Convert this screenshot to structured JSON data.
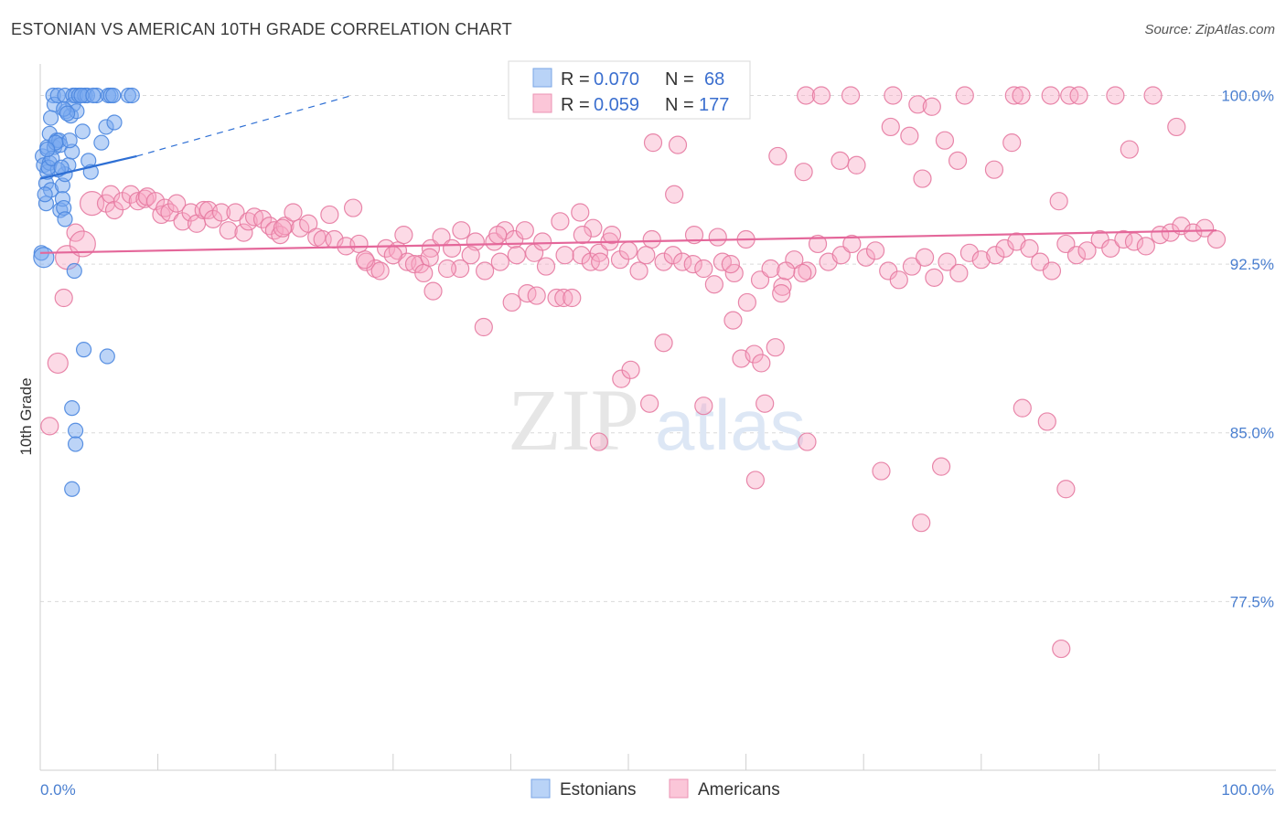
{
  "title": "ESTONIAN VS AMERICAN 10TH GRADE CORRELATION CHART",
  "source": "Source: ZipAtlas.com",
  "watermark": {
    "zip": "ZIP",
    "atlas": "atlas"
  },
  "chart_data": {
    "type": "scatter",
    "ylabel": "10th Grade",
    "xlim": [
      0,
      100
    ],
    "ylim": [
      70.0,
      101.4
    ],
    "x_tick_labels": [
      "0.0%",
      "100.0%"
    ],
    "y_ticks": [
      {
        "value": 100.0,
        "label": "100.0%"
      },
      {
        "value": 92.5,
        "label": "92.5%"
      },
      {
        "value": 85.0,
        "label": "85.0%"
      },
      {
        "value": 77.5,
        "label": "77.5%"
      }
    ],
    "grid": "horizontal dashed",
    "legend": {
      "position": "top-center",
      "rows": [
        {
          "series": "Estonians",
          "r_label": "R =",
          "r": "0.070",
          "n_label": "N =",
          "n": "68"
        },
        {
          "series": "Americans",
          "r_label": "R =",
          "r": "0.059",
          "n_label": "N =",
          "n": "177"
        }
      ]
    },
    "bottom_legend": [
      "Estonians",
      "Americans"
    ],
    "series": [
      {
        "name": "Estonians",
        "color": "#7aaaf0",
        "stroke": "#4a86df",
        "trend": {
          "x0": 0,
          "y0": 96.3,
          "x1": 8.2,
          "y1": 97.3,
          "x_dash_end": 26.5,
          "y_dash_end": 100.0,
          "color": "#2e6fd4"
        },
        "points": [
          [
            0.2,
            97.3
          ],
          [
            0.3,
            96.9
          ],
          [
            0.5,
            96.1
          ],
          [
            0.5,
            95.2
          ],
          [
            0.6,
            97.7
          ],
          [
            0.6,
            96.6
          ],
          [
            0.8,
            98.3
          ],
          [
            0.8,
            97.0
          ],
          [
            0.9,
            95.8
          ],
          [
            1.1,
            100.0
          ],
          [
            1.2,
            99.6
          ],
          [
            1.2,
            97.7
          ],
          [
            1.4,
            98.0
          ],
          [
            1.5,
            100.0
          ],
          [
            1.6,
            98.0
          ],
          [
            1.7,
            97.8
          ],
          [
            1.7,
            94.9
          ],
          [
            1.9,
            96.0
          ],
          [
            1.9,
            95.4
          ],
          [
            2.0,
            95.0
          ],
          [
            2.1,
            100.0
          ],
          [
            2.1,
            96.5
          ],
          [
            2.1,
            94.5
          ],
          [
            2.2,
            99.3
          ],
          [
            2.4,
            96.9
          ],
          [
            2.6,
            99.1
          ],
          [
            2.7,
            97.5
          ],
          [
            2.8,
            100.0
          ],
          [
            2.8,
            99.6
          ],
          [
            2.9,
            92.2
          ],
          [
            3.0,
            100.0
          ],
          [
            3.1,
            99.3
          ],
          [
            3.3,
            100.0
          ],
          [
            3.6,
            98.4
          ],
          [
            3.8,
            100.0
          ],
          [
            4.0,
            100.0
          ],
          [
            4.1,
            97.1
          ],
          [
            4.3,
            96.6
          ],
          [
            4.8,
            100.0
          ],
          [
            5.2,
            97.9
          ],
          [
            5.6,
            98.6
          ],
          [
            5.8,
            100.0
          ],
          [
            6.0,
            100.0
          ],
          [
            6.3,
            98.8
          ],
          [
            7.5,
            100.0
          ],
          [
            7.8,
            100.0
          ],
          [
            3.7,
            88.7
          ],
          [
            5.7,
            88.4
          ],
          [
            2.7,
            86.1
          ],
          [
            3.0,
            85.1
          ],
          [
            3.0,
            84.5
          ],
          [
            2.7,
            82.5
          ],
          [
            0.1,
            93.0
          ],
          [
            0.3,
            92.8
          ],
          [
            0.9,
            99.0
          ],
          [
            1.3,
            97.9
          ],
          [
            1.5,
            96.7
          ],
          [
            2.0,
            99.4
          ],
          [
            0.4,
            95.6
          ],
          [
            0.7,
            96.8
          ],
          [
            1.0,
            97.2
          ],
          [
            2.3,
            99.2
          ],
          [
            3.5,
            100.0
          ],
          [
            4.5,
            100.0
          ],
          [
            6.2,
            100.0
          ],
          [
            0.6,
            97.6
          ],
          [
            1.8,
            96.8
          ],
          [
            2.5,
            98.0
          ]
        ]
      },
      {
        "name": "Americans",
        "color": "#f7a8c4",
        "stroke": "#e57aa1",
        "trend": {
          "x0": 0,
          "y0": 93.0,
          "x1": 100,
          "y1": 94.0,
          "color": "#e4679a"
        },
        "points": [
          [
            0.8,
            85.3
          ],
          [
            1.5,
            88.1
          ],
          [
            2.0,
            91.0
          ],
          [
            2.3,
            92.8
          ],
          [
            3.0,
            93.9
          ],
          [
            3.6,
            93.4
          ],
          [
            4.4,
            95.2
          ],
          [
            5.6,
            95.2
          ],
          [
            6.0,
            95.6
          ],
          [
            6.3,
            94.9
          ],
          [
            7.0,
            95.3
          ],
          [
            7.7,
            95.6
          ],
          [
            8.3,
            95.3
          ],
          [
            8.9,
            95.4
          ],
          [
            9.1,
            95.5
          ],
          [
            9.8,
            95.3
          ],
          [
            10.3,
            94.7
          ],
          [
            10.6,
            95.0
          ],
          [
            11.0,
            94.8
          ],
          [
            11.6,
            95.2
          ],
          [
            12.1,
            94.4
          ],
          [
            12.8,
            94.8
          ],
          [
            13.3,
            94.3
          ],
          [
            13.9,
            94.9
          ],
          [
            14.3,
            94.9
          ],
          [
            14.7,
            94.5
          ],
          [
            15.4,
            94.8
          ],
          [
            16.0,
            94.0
          ],
          [
            16.6,
            94.8
          ],
          [
            17.3,
            93.9
          ],
          [
            17.7,
            94.4
          ],
          [
            18.2,
            94.6
          ],
          [
            18.9,
            94.5
          ],
          [
            19.5,
            94.2
          ],
          [
            19.9,
            94.0
          ],
          [
            20.4,
            93.8
          ],
          [
            20.8,
            94.2
          ],
          [
            21.5,
            94.8
          ],
          [
            22.1,
            94.1
          ],
          [
            22.8,
            94.3
          ],
          [
            23.5,
            93.7
          ],
          [
            24.0,
            93.6
          ],
          [
            24.6,
            94.7
          ],
          [
            25.0,
            93.6
          ],
          [
            26.0,
            93.3
          ],
          [
            27.1,
            93.4
          ],
          [
            27.7,
            92.6
          ],
          [
            28.5,
            92.3
          ],
          [
            29.4,
            93.2
          ],
          [
            30.4,
            93.1
          ],
          [
            31.2,
            92.6
          ],
          [
            32.3,
            92.5
          ],
          [
            33.2,
            93.2
          ],
          [
            34.1,
            93.7
          ],
          [
            35.0,
            93.2
          ],
          [
            35.7,
            92.3
          ],
          [
            37.0,
            93.5
          ],
          [
            37.8,
            92.2
          ],
          [
            38.6,
            93.5
          ],
          [
            39.5,
            94.0
          ],
          [
            40.3,
            93.6
          ],
          [
            41.2,
            94.0
          ],
          [
            42.0,
            93.0
          ],
          [
            43.0,
            92.4
          ],
          [
            43.9,
            91.0
          ],
          [
            44.5,
            91.0
          ],
          [
            45.2,
            91.0
          ],
          [
            46.0,
            92.9
          ],
          [
            46.8,
            92.6
          ],
          [
            47.5,
            93.0
          ],
          [
            48.4,
            93.5
          ],
          [
            49.3,
            92.7
          ],
          [
            50.0,
            93.1
          ],
          [
            50.9,
            92.2
          ],
          [
            52.0,
            93.6
          ],
          [
            53.0,
            92.6
          ],
          [
            53.8,
            92.9
          ],
          [
            54.6,
            92.6
          ],
          [
            55.5,
            92.5
          ],
          [
            56.4,
            92.3
          ],
          [
            57.3,
            91.6
          ],
          [
            58.0,
            92.6
          ],
          [
            59.0,
            92.1
          ],
          [
            60.0,
            93.6
          ],
          [
            61.2,
            91.8
          ],
          [
            62.1,
            92.3
          ],
          [
            63.1,
            91.5
          ],
          [
            64.1,
            92.7
          ],
          [
            65.2,
            92.2
          ],
          [
            66.1,
            93.4
          ],
          [
            67.0,
            92.6
          ],
          [
            68.1,
            92.9
          ],
          [
            69.0,
            93.4
          ],
          [
            70.2,
            92.8
          ],
          [
            71.0,
            93.1
          ],
          [
            72.1,
            92.2
          ],
          [
            73.0,
            91.8
          ],
          [
            74.1,
            92.4
          ],
          [
            75.2,
            92.8
          ],
          [
            76.0,
            91.9
          ],
          [
            77.1,
            92.6
          ],
          [
            78.1,
            92.1
          ],
          [
            79.0,
            93.0
          ],
          [
            80.0,
            92.7
          ],
          [
            81.2,
            92.9
          ],
          [
            82.0,
            93.2
          ],
          [
            83.0,
            93.5
          ],
          [
            84.1,
            93.2
          ],
          [
            85.0,
            92.6
          ],
          [
            86.0,
            92.2
          ],
          [
            87.2,
            93.4
          ],
          [
            88.1,
            92.9
          ],
          [
            89.0,
            93.1
          ],
          [
            90.1,
            93.6
          ],
          [
            91.0,
            93.2
          ],
          [
            92.1,
            93.6
          ],
          [
            93.0,
            93.5
          ],
          [
            94.0,
            93.3
          ],
          [
            95.2,
            93.8
          ],
          [
            96.1,
            93.9
          ],
          [
            97.0,
            94.2
          ],
          [
            98.0,
            93.9
          ],
          [
            99.0,
            94.1
          ],
          [
            100.0,
            93.6
          ],
          [
            59.3,
            100.0
          ],
          [
            65.1,
            100.0
          ],
          [
            66.4,
            100.0
          ],
          [
            68.9,
            100.0
          ],
          [
            72.5,
            100.0
          ],
          [
            74.6,
            99.6
          ],
          [
            75.8,
            99.5
          ],
          [
            78.6,
            100.0
          ],
          [
            82.8,
            100.0
          ],
          [
            83.4,
            100.0
          ],
          [
            85.9,
            100.0
          ],
          [
            87.5,
            100.0
          ],
          [
            88.3,
            100.0
          ],
          [
            91.4,
            100.0
          ],
          [
            94.6,
            100.0
          ],
          [
            72.3,
            98.6
          ],
          [
            73.9,
            98.2
          ],
          [
            76.9,
            98.0
          ],
          [
            78.0,
            97.1
          ],
          [
            81.1,
            96.7
          ],
          [
            82.6,
            97.9
          ],
          [
            86.6,
            95.3
          ],
          [
            92.6,
            97.6
          ],
          [
            62.7,
            97.3
          ],
          [
            64.9,
            96.6
          ],
          [
            68.0,
            97.1
          ],
          [
            69.4,
            96.9
          ],
          [
            75.0,
            96.3
          ],
          [
            96.6,
            98.6
          ],
          [
            52.1,
            97.9
          ],
          [
            54.2,
            97.8
          ],
          [
            53.9,
            95.6
          ],
          [
            44.2,
            94.4
          ],
          [
            45.9,
            94.8
          ],
          [
            47.0,
            94.1
          ],
          [
            59.6,
            88.3
          ],
          [
            60.7,
            88.5
          ],
          [
            61.3,
            88.1
          ],
          [
            62.5,
            88.8
          ],
          [
            63.0,
            91.2
          ],
          [
            64.8,
            92.1
          ],
          [
            49.4,
            87.4
          ],
          [
            50.2,
            87.8
          ],
          [
            51.8,
            86.3
          ],
          [
            53.0,
            89.0
          ],
          [
            56.4,
            86.2
          ],
          [
            58.9,
            90.0
          ],
          [
            60.1,
            90.8
          ],
          [
            61.6,
            86.3
          ],
          [
            63.4,
            92.2
          ],
          [
            60.8,
            82.9
          ],
          [
            65.2,
            84.6
          ],
          [
            71.5,
            83.3
          ],
          [
            74.9,
            81.0
          ],
          [
            76.6,
            83.5
          ],
          [
            83.5,
            86.1
          ],
          [
            85.6,
            85.5
          ],
          [
            87.2,
            82.5
          ],
          [
            86.8,
            75.4
          ],
          [
            47.5,
            84.6
          ],
          [
            37.7,
            89.7
          ],
          [
            26.6,
            95.0
          ],
          [
            40.1,
            90.8
          ],
          [
            41.4,
            91.2
          ],
          [
            30.9,
            93.8
          ],
          [
            33.4,
            91.3
          ],
          [
            35.8,
            94.0
          ],
          [
            38.9,
            93.8
          ],
          [
            27.6,
            92.7
          ],
          [
            28.9,
            92.2
          ],
          [
            30.0,
            92.9
          ],
          [
            31.8,
            92.5
          ],
          [
            32.6,
            92.1
          ],
          [
            34.6,
            92.3
          ],
          [
            36.6,
            92.9
          ],
          [
            42.2,
            91.1
          ],
          [
            39.1,
            92.6
          ],
          [
            40.5,
            92.9
          ],
          [
            42.7,
            93.5
          ],
          [
            44.6,
            92.9
          ],
          [
            46.1,
            93.8
          ],
          [
            47.6,
            92.6
          ],
          [
            48.6,
            93.8
          ],
          [
            51.5,
            92.9
          ],
          [
            55.6,
            93.8
          ],
          [
            57.6,
            93.7
          ],
          [
            58.7,
            92.5
          ],
          [
            33.1,
            92.8
          ],
          [
            20.6,
            94.1
          ]
        ]
      }
    ]
  }
}
